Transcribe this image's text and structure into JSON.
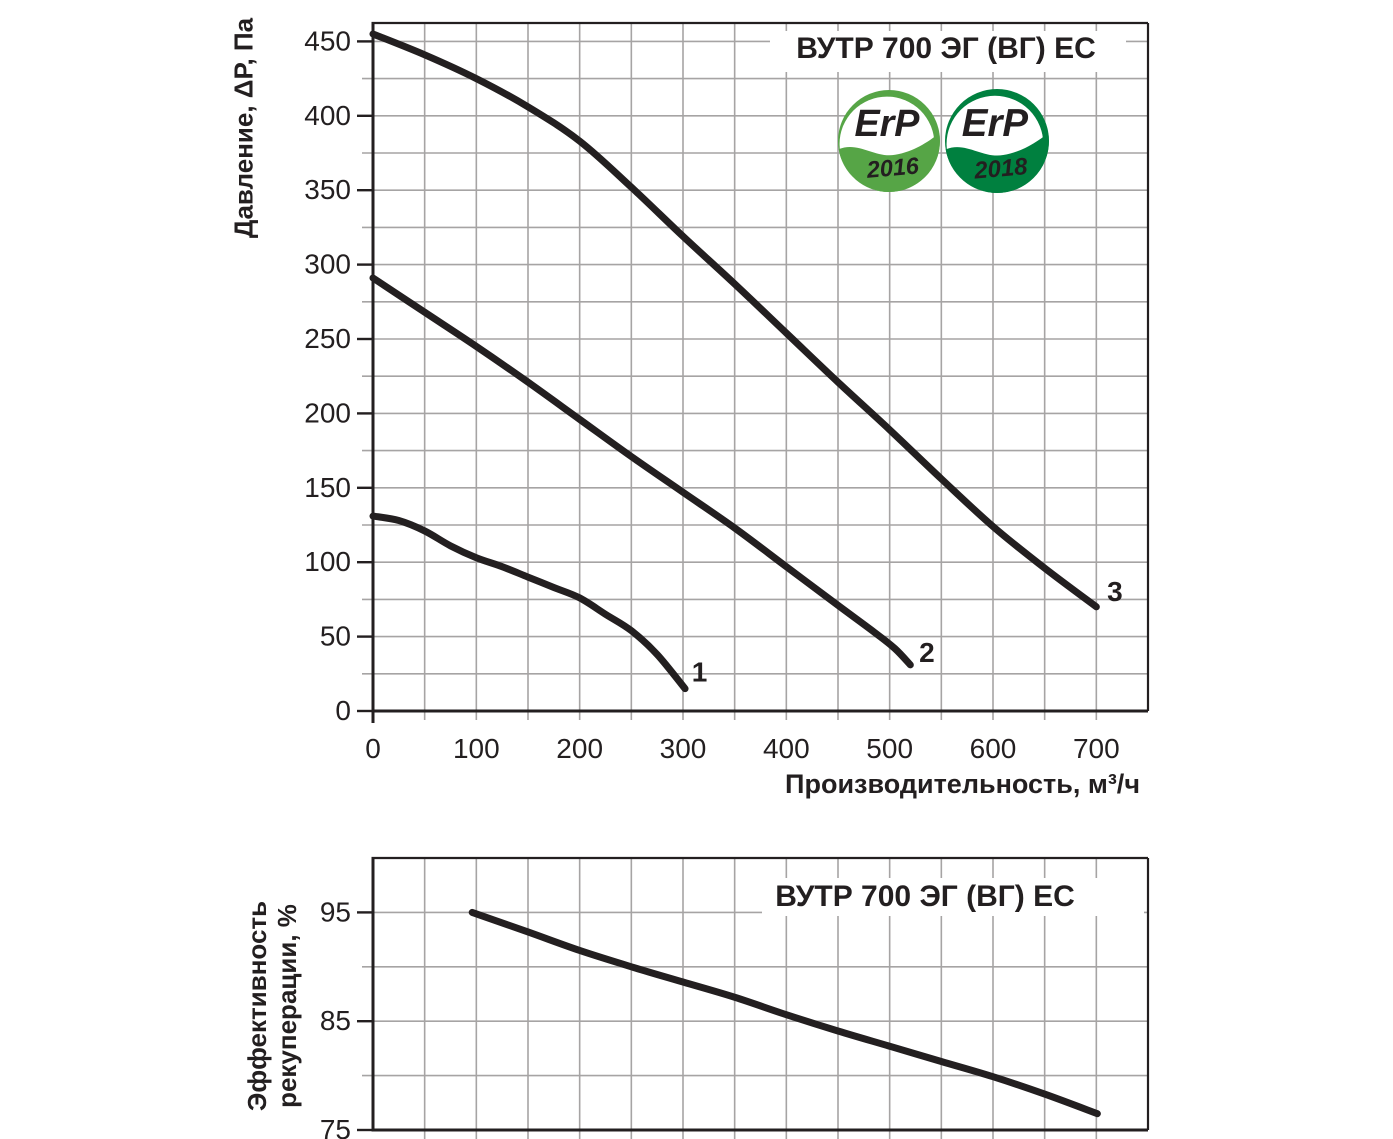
{
  "ink_color": "#231f20",
  "grid_color": "#a6a4a4",
  "chart_data": [
    {
      "type": "line",
      "title": "ВУТР 700 ЭГ (ВГ) ЕС",
      "xlabel": "Производительность, м³/ч",
      "ylabel": "Давление, ΔP, Па",
      "xlim": [
        0,
        750
      ],
      "ylim": [
        0,
        462.5
      ],
      "x_tick_values": [
        0,
        100,
        200,
        300,
        400,
        500,
        600,
        700
      ],
      "x_tick_labels": [
        "0",
        "100",
        "200",
        "300",
        "400",
        "500",
        "600",
        "700"
      ],
      "y_tick_values": [
        0,
        50,
        100,
        150,
        200,
        250,
        300,
        350,
        400,
        450
      ],
      "y_tick_labels": [
        "0",
        "50",
        "100",
        "150",
        "200",
        "250",
        "300",
        "350",
        "400",
        "450"
      ],
      "x_grid_step": 50,
      "y_grid_step": 25,
      "grid": true,
      "legend_position": "labels at curve ends",
      "series": [
        {
          "name": "speed-1",
          "label": "1",
          "label_at": [
            316,
            26
          ],
          "points": [
            [
              0,
              131
            ],
            [
              25,
              128
            ],
            [
              50,
              121
            ],
            [
              75,
              111
            ],
            [
              100,
              103
            ],
            [
              125,
              97
            ],
            [
              150,
              90
            ],
            [
              175,
              83
            ],
            [
              200,
              76
            ],
            [
              225,
              65
            ],
            [
              250,
              54
            ],
            [
              275,
              38
            ],
            [
              302,
              15
            ]
          ]
        },
        {
          "name": "speed-2",
          "label": "2",
          "label_at": [
            536,
            39
          ],
          "points": [
            [
              0,
              291
            ],
            [
              50,
              268
            ],
            [
              100,
              245
            ],
            [
              150,
              221
            ],
            [
              200,
              196
            ],
            [
              250,
              171
            ],
            [
              300,
              147
            ],
            [
              350,
              123
            ],
            [
              400,
              97
            ],
            [
              450,
              71
            ],
            [
              485,
              53
            ],
            [
              505,
              42
            ],
            [
              520,
              31
            ]
          ]
        },
        {
          "name": "speed-3",
          "label": "3",
          "label_at": [
            718,
            80
          ],
          "points": [
            [
              0,
              455
            ],
            [
              50,
              441
            ],
            [
              100,
              425
            ],
            [
              150,
              406
            ],
            [
              200,
              383
            ],
            [
              250,
              352
            ],
            [
              300,
              319
            ],
            [
              350,
              287
            ],
            [
              400,
              254
            ],
            [
              450,
              221
            ],
            [
              500,
              189
            ],
            [
              550,
              156
            ],
            [
              600,
              124
            ],
            [
              650,
              96
            ],
            [
              700,
              70
            ]
          ]
        }
      ],
      "badges": [
        {
          "text": "ErP",
          "year": "2016",
          "swoosh_color": "#56a546",
          "text_color": "#00944b"
        },
        {
          "text": "ErP",
          "year": "2018",
          "swoosh_color": "#00803f",
          "text_color": "#00713c"
        }
      ]
    },
    {
      "type": "line",
      "title": "ВУТР 700 ЭГ (ВГ) ЕС",
      "xlabel": "",
      "ylabel_lines": [
        "Эффективность",
        "рекуперации, %"
      ],
      "xlim": [
        0,
        750
      ],
      "ylim": [
        75,
        100
      ],
      "y_tick_values": [
        75,
        85,
        95
      ],
      "y_tick_labels": [
        "75",
        "85",
        "95"
      ],
      "x_grid_step": 50,
      "y_grid_step": 5,
      "grid": true,
      "series": [
        {
          "name": "recovery-efficiency",
          "label": "",
          "points": [
            [
              96,
              95
            ],
            [
              150,
              93.2
            ],
            [
              200,
              91.5
            ],
            [
              250,
              90
            ],
            [
              300,
              88.6
            ],
            [
              350,
              87.2
            ],
            [
              400,
              85.6
            ],
            [
              450,
              84.1
            ],
            [
              500,
              82.7
            ],
            [
              550,
              81.3
            ],
            [
              600,
              79.9
            ],
            [
              650,
              78.3
            ],
            [
              701,
              76.5
            ]
          ]
        }
      ]
    }
  ]
}
